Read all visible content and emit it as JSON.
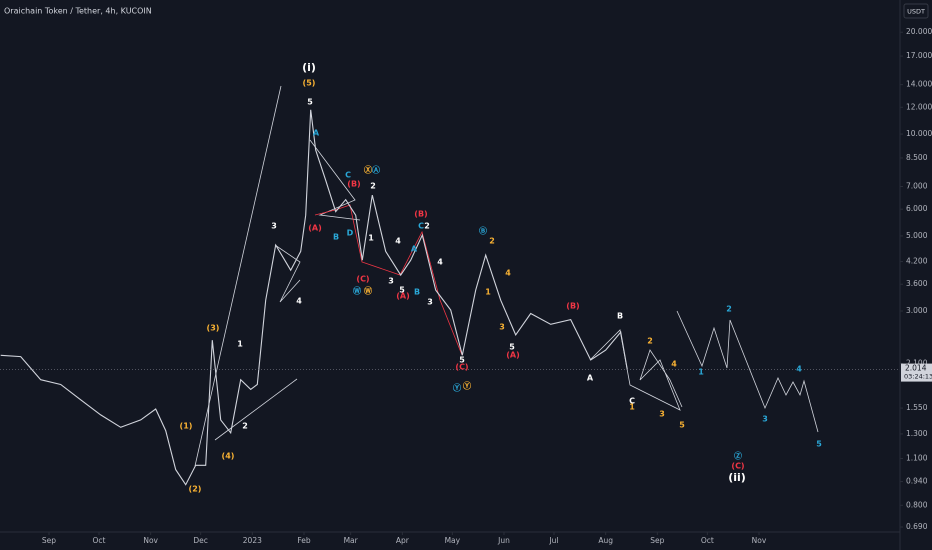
{
  "chart_data": {
    "type": "line",
    "title": "Oraichain Token / Tether, 4h, KUCOIN",
    "currency": "USDT",
    "log_scale": true,
    "grid": false,
    "color": "#d1d4dc",
    "last_price": {
      "value": 2.014,
      "label": "2.014"
    },
    "countdown": "03:24:13",
    "x": [
      -29,
      -17,
      -5,
      7,
      19,
      31,
      43,
      55,
      64,
      70,
      76,
      82,
      88,
      94,
      98,
      103,
      109,
      115,
      121,
      125,
      130,
      136,
      145,
      151,
      154,
      157,
      160,
      166,
      172,
      178,
      184,
      188,
      194,
      202,
      211,
      217,
      224,
      232,
      241,
      248,
      256,
      262,
      271,
      280,
      289,
      301,
      313,
      325,
      334,
      343,
      347
    ],
    "values": [
      2.22,
      2.2,
      1.88,
      1.82,
      1.64,
      1.48,
      1.36,
      1.43,
      1.54,
      1.33,
      1.02,
      0.92,
      1.05,
      1.05,
      2.46,
      1.43,
      1.31,
      1.88,
      1.76,
      1.82,
      3.23,
      4.7,
      3.96,
      4.5,
      5.76,
      11.8,
      8.97,
      7.3,
      5.9,
      6.4,
      5.76,
      4.24,
      6.6,
      4.5,
      3.83,
      4.24,
      5.03,
      3.46,
      3.02,
      2.22,
      3.46,
      4.39,
      3.23,
      2.55,
      2.95,
      2.74,
      2.83,
      2.15,
      2.3,
      2.6,
      2.014
    ],
    "xlim": [
      -29.4,
      510.6
    ],
    "xticks": [
      {
        "value": 0,
        "label": "Sep"
      },
      {
        "value": 30,
        "label": "Oct"
      },
      {
        "value": 61,
        "label": "Nov"
      },
      {
        "value": 91,
        "label": "Dec"
      },
      {
        "value": 122,
        "label": "2023"
      },
      {
        "value": 153,
        "label": "Feb"
      },
      {
        "value": 181,
        "label": "Mar"
      },
      {
        "value": 212,
        "label": "Apr"
      },
      {
        "value": 242,
        "label": "May"
      },
      {
        "value": 273,
        "label": "Jun"
      },
      {
        "value": 303,
        "label": "Jul"
      },
      {
        "value": 334,
        "label": "Aug"
      },
      {
        "value": 365,
        "label": "Sep"
      },
      {
        "value": 395,
        "label": "Oct"
      },
      {
        "value": 426,
        "label": "Nov"
      }
    ],
    "ylim": [
      0.667,
      24.9
    ],
    "yticks": [
      {
        "value": 20,
        "label": "20.000"
      },
      {
        "value": 17,
        "label": "17.000"
      },
      {
        "value": 14,
        "label": "14.000"
      },
      {
        "value": 12,
        "label": "12.000"
      },
      {
        "value": 10,
        "label": "10.000"
      },
      {
        "value": 8.5,
        "label": "8.500"
      },
      {
        "value": 7,
        "label": "7.000"
      },
      {
        "value": 6,
        "label": "6.000"
      },
      {
        "value": 5,
        "label": "5.000"
      },
      {
        "value": 4.2,
        "label": "4.200"
      },
      {
        "value": 3.6,
        "label": "3.600"
      },
      {
        "value": 3,
        "label": "3.000"
      },
      {
        "value": 2.1,
        "label": "2.100"
      },
      {
        "value": 1.55,
        "label": "1.550"
      },
      {
        "value": 1.3,
        "label": "1.300"
      },
      {
        "value": 1.1,
        "label": "1.100"
      },
      {
        "value": 0.94,
        "label": "0.940"
      },
      {
        "value": 0.8,
        "label": "0.800"
      },
      {
        "value": 0.69,
        "label": "0.690"
      }
    ],
    "annotations": [
      {
        "text": "(i)",
        "color": "#ffffff"
      },
      {
        "text": "(5)",
        "color": "#f9b233"
      },
      {
        "text": "5",
        "color": "#ffffff"
      },
      {
        "text": "A",
        "color": "#2aa8d8"
      },
      {
        "text": "3",
        "color": "#ffffff"
      },
      {
        "text": "4",
        "color": "#ffffff"
      },
      {
        "text": "(3)",
        "color": "#f9b233"
      },
      {
        "text": "1",
        "color": "#ffffff"
      },
      {
        "text": "(1)",
        "color": "#f9b233"
      },
      {
        "text": "2",
        "color": "#ffffff"
      },
      {
        "text": "(4)",
        "color": "#f9b233"
      },
      {
        "text": "(2)",
        "color": "#f9b233"
      },
      {
        "text": "C",
        "color": "#2aa8d8"
      },
      {
        "text": "(B)",
        "color": "#f23645"
      },
      {
        "text": "Ⓧ",
        "color": "#f9b233"
      },
      {
        "text": "Ⓐ",
        "color": "#2aa8d8"
      },
      {
        "text": "2",
        "color": "#ffffff"
      },
      {
        "text": "(A)",
        "color": "#f23645"
      },
      {
        "text": "B",
        "color": "#2aa8d8"
      },
      {
        "text": "D",
        "color": "#2aa8d8"
      },
      {
        "text": "1",
        "color": "#ffffff"
      },
      {
        "text": "(C)",
        "color": "#f23645"
      },
      {
        "text": "Ⓦ",
        "color": "#2aa8d8"
      },
      {
        "text": "Ⓦ",
        "color": "#f9b233"
      },
      {
        "text": "3",
        "color": "#ffffff"
      },
      {
        "text": "4",
        "color": "#ffffff"
      },
      {
        "text": "A",
        "color": "#2aa8d8"
      },
      {
        "text": "(B)",
        "color": "#f23645"
      },
      {
        "text": "C",
        "color": "#2aa8d8"
      },
      {
        "text": "2",
        "color": "#ffffff"
      },
      {
        "text": "4",
        "color": "#ffffff"
      },
      {
        "text": "5",
        "color": "#ffffff"
      },
      {
        "text": "B",
        "color": "#2aa8d8"
      },
      {
        "text": "(A)",
        "color": "#f23645"
      },
      {
        "text": "3",
        "color": "#ffffff"
      },
      {
        "text": "5",
        "color": "#ffffff"
      },
      {
        "text": "(C)",
        "color": "#f23645"
      },
      {
        "text": "Ⓨ",
        "color": "#2aa8d8"
      },
      {
        "text": "Ⓨ",
        "color": "#f9b233"
      },
      {
        "text": "Ⓑ",
        "color": "#2aa8d8"
      },
      {
        "text": "2",
        "color": "#f9b233"
      },
      {
        "text": "1",
        "color": "#f9b233"
      },
      {
        "text": "4",
        "color": "#f9b233"
      },
      {
        "text": "3",
        "color": "#f9b233"
      },
      {
        "text": "5",
        "color": "#ffffff"
      },
      {
        "text": "(A)",
        "color": "#f23645"
      },
      {
        "text": "(B)",
        "color": "#f23645"
      },
      {
        "text": "B",
        "color": "#ffffff"
      },
      {
        "text": "A",
        "color": "#ffffff"
      },
      {
        "text": "C",
        "color": "#ffffff"
      },
      {
        "text": "1",
        "color": "#f9b233"
      },
      {
        "text": "2",
        "color": "#f9b233"
      },
      {
        "text": "4",
        "color": "#f9b233"
      },
      {
        "text": "3",
        "color": "#f9b233"
      },
      {
        "text": "5",
        "color": "#f9b233"
      },
      {
        "text": "1",
        "color": "#2aa8d8"
      },
      {
        "text": "2",
        "color": "#2aa8d8"
      },
      {
        "text": "3",
        "color": "#2aa8d8"
      },
      {
        "text": "4",
        "color": "#2aa8d8"
      },
      {
        "text": "5",
        "color": "#2aa8d8"
      },
      {
        "text": "Ⓩ",
        "color": "#2aa8d8"
      },
      {
        "text": "(C)",
        "color": "#f23645"
      },
      {
        "text": "(ii)",
        "color": "#ffffff"
      }
    ]
  }
}
